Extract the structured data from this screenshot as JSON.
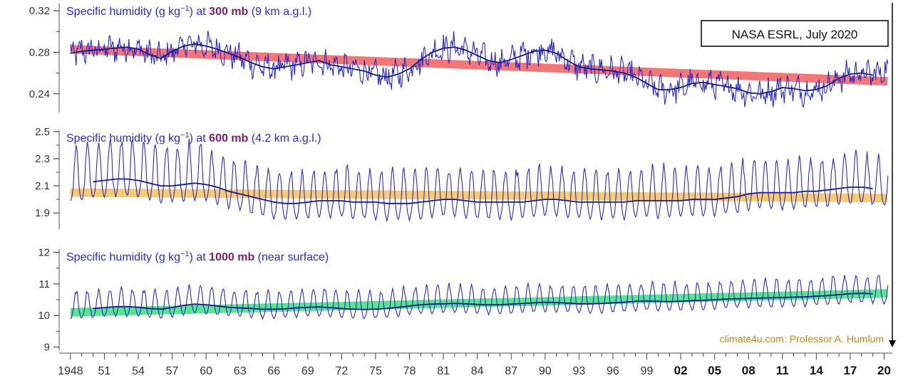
{
  "source_box": "NASA ESRL, July 2020",
  "credit": "climate4u.com: Professor A. Humlum",
  "colors": {
    "monthly": "#2a2ad0",
    "smooth": "#1a1a8a",
    "text_purple": "#7a1f6e",
    "credit": "#c08a20",
    "trend_top": "#f06060",
    "trend_mid": "#f5c25a",
    "trend_bottom": "#3ee07a"
  },
  "chart_data": [
    {
      "type": "line",
      "title_prefix": "Specific humidity (g kg",
      "title_sup": "−1",
      "title_mid": ") at ",
      "title_level": "300 mb",
      "title_suffix": " (9 km a.g.l.)",
      "ylim": [
        0.222,
        0.327
      ],
      "yticks": [
        0.24,
        0.28,
        0.32
      ],
      "ytick_labels": [
        "0.24",
        "0.28",
        "0.32"
      ],
      "xlim": [
        1947.0,
        2020.6
      ],
      "series": [
        {
          "kind": "monthly",
          "x": [
            1948,
            1949,
            1950,
            1951,
            1952,
            1953,
            1954,
            1955,
            1956,
            1957,
            1958,
            1959,
            1960,
            1961,
            1962,
            1963,
            1964,
            1965,
            1966,
            1967,
            1968,
            1969,
            1970,
            1971,
            1972,
            1973,
            1974,
            1975,
            1976,
            1977,
            1978,
            1979,
            1980,
            1981,
            1982,
            1983,
            1984,
            1985,
            1986,
            1987,
            1988,
            1989,
            1990,
            1991,
            1992,
            1993,
            1994,
            1995,
            1996,
            1997,
            1998,
            1999,
            2000,
            2001,
            2002,
            2003,
            2004,
            2005,
            2006,
            2007,
            2008,
            2009,
            2010,
            2011,
            2012,
            2013,
            2014,
            2015,
            2016,
            2017,
            2018,
            2019,
            2020
          ],
          "mean": [
            0.279,
            0.281,
            0.282,
            0.283,
            0.284,
            0.285,
            0.283,
            0.278,
            0.274,
            0.281,
            0.286,
            0.288,
            0.286,
            0.283,
            0.279,
            0.275,
            0.27,
            0.266,
            0.264,
            0.266,
            0.268,
            0.27,
            0.272,
            0.268,
            0.266,
            0.264,
            0.262,
            0.258,
            0.256,
            0.259,
            0.264,
            0.273,
            0.28,
            0.284,
            0.285,
            0.282,
            0.277,
            0.272,
            0.27,
            0.273,
            0.277,
            0.281,
            0.282,
            0.279,
            0.272,
            0.266,
            0.264,
            0.263,
            0.262,
            0.26,
            0.256,
            0.25,
            0.244,
            0.244,
            0.246,
            0.25,
            0.251,
            0.249,
            0.247,
            0.245,
            0.241,
            0.24,
            0.242,
            0.246,
            0.245,
            0.243,
            0.244,
            0.248,
            0.255,
            0.259,
            0.26,
            0.258,
            0.262
          ],
          "amplitude": 0.013
        },
        {
          "kind": "smooth",
          "x": [
            1948,
            1949,
            1950,
            1951,
            1952,
            1953,
            1954,
            1955,
            1956,
            1957,
            1958,
            1959,
            1960,
            1961,
            1962,
            1963,
            1964,
            1965,
            1966,
            1967,
            1968,
            1969,
            1970,
            1971,
            1972,
            1973,
            1974,
            1975,
            1976,
            1977,
            1978,
            1979,
            1980,
            1981,
            1982,
            1983,
            1984,
            1985,
            1986,
            1987,
            1988,
            1989,
            1990,
            1991,
            1992,
            1993,
            1994,
            1995,
            1996,
            1997,
            1998,
            1999,
            2000,
            2001,
            2002,
            2003,
            2004,
            2005,
            2006,
            2007,
            2008,
            2009,
            2010,
            2011,
            2012,
            2013,
            2014,
            2015,
            2016,
            2017,
            2018,
            2019
          ],
          "y": [
            0.279,
            0.281,
            0.282,
            0.283,
            0.284,
            0.285,
            0.283,
            0.278,
            0.274,
            0.281,
            0.286,
            0.288,
            0.286,
            0.283,
            0.279,
            0.275,
            0.27,
            0.266,
            0.264,
            0.266,
            0.268,
            0.27,
            0.272,
            0.268,
            0.266,
            0.264,
            0.262,
            0.258,
            0.256,
            0.259,
            0.264,
            0.273,
            0.28,
            0.284,
            0.285,
            0.282,
            0.277,
            0.272,
            0.27,
            0.273,
            0.277,
            0.281,
            0.282,
            0.279,
            0.272,
            0.266,
            0.264,
            0.263,
            0.262,
            0.26,
            0.256,
            0.25,
            0.244,
            0.244,
            0.246,
            0.25,
            0.251,
            0.249,
            0.247,
            0.245,
            0.241,
            0.24,
            0.242,
            0.246,
            0.245,
            0.243,
            0.244,
            0.248,
            0.255,
            0.259,
            0.26,
            0.258
          ]
        },
        {
          "kind": "trend",
          "x": [
            1948,
            2020.3
          ],
          "y": [
            0.283,
            0.252
          ]
        }
      ]
    },
    {
      "type": "line",
      "title_prefix": "Specific humidity (g kg",
      "title_sup": "−1",
      "title_mid": ") at ",
      "title_level": "600 mb",
      "title_suffix": " (4.2 km a.g.l.)",
      "ylim": [
        1.78,
        2.51
      ],
      "yticks": [
        1.9,
        2.1,
        2.3,
        2.5
      ],
      "ytick_labels": [
        "1.9",
        "2.1",
        "2.3",
        "2.5"
      ],
      "xlim": [
        1947.0,
        2020.6
      ],
      "series": [
        {
          "kind": "monthly",
          "x": [
            1948,
            1949,
            1950,
            1951,
            1952,
            1953,
            1954,
            1955,
            1956,
            1957,
            1958,
            1959,
            1960,
            1961,
            1962,
            1963,
            1964,
            1965,
            1966,
            1967,
            1968,
            1969,
            1970,
            1971,
            1972,
            1973,
            1974,
            1975,
            1976,
            1977,
            1978,
            1979,
            1980,
            1981,
            1982,
            1983,
            1984,
            1985,
            1986,
            1987,
            1988,
            1989,
            1990,
            1991,
            1992,
            1993,
            1994,
            1995,
            1996,
            1997,
            1998,
            1999,
            2000,
            2001,
            2002,
            2003,
            2004,
            2005,
            2006,
            2007,
            2008,
            2009,
            2010,
            2011,
            2012,
            2013,
            2014,
            2015,
            2016,
            2017,
            2018,
            2019,
            2020
          ],
          "mean": [
            2.1,
            2.12,
            2.13,
            2.14,
            2.15,
            2.15,
            2.14,
            2.12,
            2.1,
            2.1,
            2.11,
            2.12,
            2.11,
            2.09,
            2.06,
            2.04,
            2.02,
            2.0,
            1.98,
            1.97,
            1.97,
            1.98,
            1.99,
            1.99,
            1.99,
            1.98,
            1.98,
            1.98,
            1.97,
            1.97,
            1.97,
            1.98,
            1.99,
            2.0,
            2.0,
            1.99,
            1.98,
            1.98,
            1.98,
            1.98,
            1.98,
            1.99,
            2.0,
            2.0,
            1.99,
            1.98,
            1.98,
            1.98,
            1.98,
            1.98,
            1.99,
            1.99,
            1.99,
            1.99,
            1.99,
            2.0,
            2.0,
            2.0,
            2.01,
            2.02,
            2.04,
            2.05,
            2.05,
            2.05,
            2.05,
            2.06,
            2.06,
            2.07,
            2.08,
            2.09,
            2.09,
            2.08,
            2.07
          ],
          "amplitude": 0.22
        },
        {
          "kind": "smooth",
          "x": [
            1950,
            1951,
            1952,
            1953,
            1954,
            1955,
            1956,
            1957,
            1958,
            1959,
            1960,
            1961,
            1962,
            1963,
            1964,
            1965,
            1966,
            1967,
            1968,
            1969,
            1970,
            1971,
            1972,
            1973,
            1974,
            1975,
            1976,
            1977,
            1978,
            1979,
            1980,
            1981,
            1982,
            1983,
            1984,
            1985,
            1986,
            1987,
            1988,
            1989,
            1990,
            1991,
            1992,
            1993,
            1994,
            1995,
            1996,
            1997,
            1998,
            1999,
            2000,
            2001,
            2002,
            2003,
            2004,
            2005,
            2006,
            2007,
            2008,
            2009,
            2010,
            2011,
            2012,
            2013,
            2014,
            2015,
            2016,
            2017,
            2018,
            2019
          ],
          "y": [
            2.13,
            2.14,
            2.15,
            2.15,
            2.14,
            2.12,
            2.1,
            2.1,
            2.11,
            2.12,
            2.11,
            2.09,
            2.06,
            2.04,
            2.02,
            2.0,
            1.98,
            1.97,
            1.97,
            1.98,
            1.99,
            1.99,
            1.99,
            1.98,
            1.98,
            1.98,
            1.97,
            1.97,
            1.97,
            1.98,
            1.99,
            2.0,
            2.0,
            1.99,
            1.98,
            1.98,
            1.98,
            1.98,
            1.98,
            1.99,
            2.0,
            2.0,
            1.99,
            1.98,
            1.98,
            1.98,
            1.98,
            1.98,
            1.99,
            1.99,
            1.99,
            1.99,
            1.99,
            2.0,
            2.0,
            2.0,
            2.01,
            2.02,
            2.04,
            2.05,
            2.05,
            2.05,
            2.05,
            2.06,
            2.06,
            2.07,
            2.08,
            2.09,
            2.09,
            2.08
          ]
        },
        {
          "kind": "trend",
          "x": [
            1948,
            2020.3
          ],
          "y": [
            2.05,
            2.01
          ]
        }
      ]
    },
    {
      "type": "line",
      "title_prefix": "Specific humidity (g kg",
      "title_sup": "−1",
      "title_mid": ") at ",
      "title_level": "1000 mb",
      "title_suffix": " (near surface)",
      "ylim": [
        8.9,
        12.1
      ],
      "yticks": [
        9,
        10,
        11,
        12
      ],
      "ytick_labels": [
        "9",
        "10",
        "11",
        "12"
      ],
      "xlim": [
        1947.0,
        2020.6
      ],
      "series": [
        {
          "kind": "monthly",
          "x": [
            1948,
            1949,
            1950,
            1951,
            1952,
            1953,
            1954,
            1955,
            1956,
            1957,
            1958,
            1959,
            1960,
            1961,
            1962,
            1963,
            1964,
            1965,
            1966,
            1967,
            1968,
            1969,
            1970,
            1971,
            1972,
            1973,
            1974,
            1975,
            1976,
            1977,
            1978,
            1979,
            1980,
            1981,
            1982,
            1983,
            1984,
            1985,
            1986,
            1987,
            1988,
            1989,
            1990,
            1991,
            1992,
            1993,
            1994,
            1995,
            1996,
            1997,
            1998,
            1999,
            2000,
            2001,
            2002,
            2003,
            2004,
            2005,
            2006,
            2007,
            2008,
            2009,
            2010,
            2011,
            2012,
            2013,
            2014,
            2015,
            2016,
            2017,
            2018,
            2019,
            2020
          ],
          "mean": [
            10.18,
            10.2,
            10.22,
            10.25,
            10.28,
            10.28,
            10.26,
            10.22,
            10.2,
            10.25,
            10.32,
            10.36,
            10.34,
            10.3,
            10.26,
            10.24,
            10.22,
            10.2,
            10.2,
            10.21,
            10.24,
            10.26,
            10.27,
            10.25,
            10.22,
            10.2,
            10.19,
            10.2,
            10.22,
            10.26,
            10.3,
            10.34,
            10.36,
            10.37,
            10.38,
            10.37,
            10.35,
            10.34,
            10.34,
            10.36,
            10.38,
            10.4,
            10.42,
            10.41,
            10.39,
            10.37,
            10.37,
            10.38,
            10.4,
            10.42,
            10.45,
            10.46,
            10.45,
            10.44,
            10.45,
            10.47,
            10.48,
            10.5,
            10.52,
            10.53,
            10.54,
            10.55,
            10.56,
            10.57,
            10.58,
            10.59,
            10.61,
            10.63,
            10.66,
            10.69,
            10.7,
            10.69,
            10.68
          ],
          "amplitude": 0.52
        },
        {
          "kind": "smooth",
          "x": [
            1950,
            1951,
            1952,
            1953,
            1954,
            1955,
            1956,
            1957,
            1958,
            1959,
            1960,
            1961,
            1962,
            1963,
            1964,
            1965,
            1966,
            1967,
            1968,
            1969,
            1970,
            1971,
            1972,
            1973,
            1974,
            1975,
            1976,
            1977,
            1978,
            1979,
            1980,
            1981,
            1982,
            1983,
            1984,
            1985,
            1986,
            1987,
            1988,
            1989,
            1990,
            1991,
            1992,
            1993,
            1994,
            1995,
            1996,
            1997,
            1998,
            1999,
            2000,
            2001,
            2002,
            2003,
            2004,
            2005,
            2006,
            2007,
            2008,
            2009,
            2010,
            2011,
            2012,
            2013,
            2014,
            2015,
            2016,
            2017,
            2018,
            2019
          ],
          "y": [
            10.22,
            10.25,
            10.28,
            10.28,
            10.26,
            10.22,
            10.2,
            10.25,
            10.32,
            10.36,
            10.34,
            10.3,
            10.26,
            10.24,
            10.22,
            10.2,
            10.2,
            10.21,
            10.24,
            10.26,
            10.27,
            10.25,
            10.22,
            10.2,
            10.19,
            10.2,
            10.22,
            10.26,
            10.3,
            10.34,
            10.36,
            10.37,
            10.38,
            10.37,
            10.35,
            10.34,
            10.34,
            10.36,
            10.38,
            10.4,
            10.42,
            10.41,
            10.39,
            10.37,
            10.37,
            10.38,
            10.4,
            10.42,
            10.45,
            10.46,
            10.45,
            10.44,
            10.45,
            10.47,
            10.48,
            10.5,
            10.52,
            10.53,
            10.54,
            10.55,
            10.56,
            10.57,
            10.58,
            10.59,
            10.61,
            10.63,
            10.66,
            10.69,
            10.7,
            10.69
          ]
        },
        {
          "kind": "trend",
          "x": [
            1948,
            2020.3
          ],
          "y": [
            10.1,
            10.7
          ]
        }
      ]
    }
  ],
  "x_axis": {
    "tick_years": [
      1948,
      1951,
      1954,
      1957,
      1960,
      1963,
      1966,
      1969,
      1972,
      1975,
      1978,
      1981,
      1984,
      1987,
      1990,
      1993,
      1996,
      1999,
      2002,
      2005,
      2008,
      2011,
      2014,
      2017,
      2020
    ],
    "tick_labels": [
      "1948",
      "51",
      "54",
      "57",
      "60",
      "63",
      "66",
      "69",
      "72",
      "75",
      "78",
      "81",
      "84",
      "87",
      "90",
      "93",
      "96",
      "99",
      "02",
      "05",
      "08",
      "11",
      "14",
      "17",
      "20"
    ],
    "bold_from_year": 2002
  }
}
